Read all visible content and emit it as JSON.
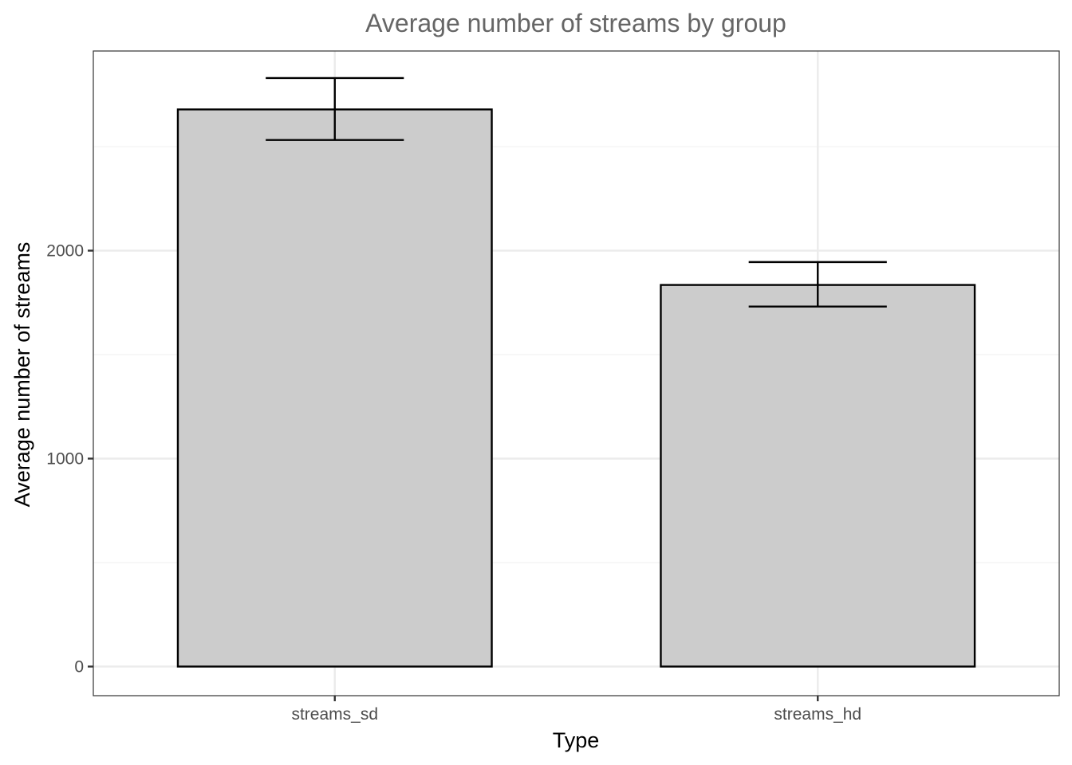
{
  "chart_data": {
    "type": "bar",
    "title": "Average number of streams by group",
    "xlabel": "Type",
    "ylabel": "Average number of streams",
    "categories": [
      "streams_sd",
      "streams_hd"
    ],
    "values": [
      2679,
      1835
    ],
    "error_bars": [
      {
        "lower": 2532,
        "upper": 2830
      },
      {
        "lower": 1731,
        "upper": 1945
      }
    ],
    "ylim": [
      -140,
      2960
    ],
    "yticks": [
      0,
      1000,
      2000
    ],
    "ytick_labels": [
      "0",
      "1000",
      "2000"
    ],
    "grid": true,
    "legend": "none",
    "colors": {
      "bar_fill": "#cccccc",
      "bar_outline": "#000000",
      "grid_major": "#ebebeb",
      "grid_minor": "#f2f2f2",
      "panel_border": "#333333",
      "title": "#666666",
      "tick_label": "#4d4d4d"
    }
  }
}
